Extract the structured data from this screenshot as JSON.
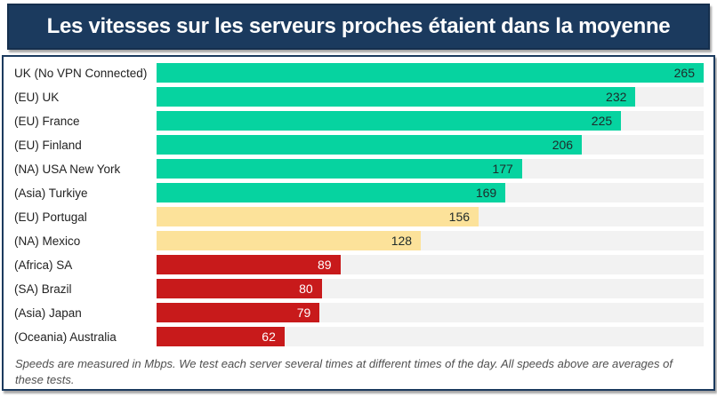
{
  "title": "Les vitesses sur les serveurs proches étaient dans la moyenne",
  "footnote": "Speeds are measured in Mbps. We test each server several times at different times of the day. All speeds above are averages of these tests.",
  "colors": {
    "navy": "#1b3a5e",
    "navy_border": "#152f4e",
    "green": "#06d3a0",
    "yellow": "#fce29a",
    "red": "#c81a1b",
    "track": "#f2f2f2",
    "value_text_dark": "#1e2a2a",
    "value_text_light": "#ffffff"
  },
  "chart_data": {
    "type": "bar",
    "orientation": "horizontal",
    "title": "Les vitesses sur les serveurs proches étaient dans la moyenne",
    "unit": "Mbps",
    "xlim": [
      0,
      265
    ],
    "grid": false,
    "legend": false,
    "categories": [
      "UK (No VPN Connected)",
      "(EU) UK",
      "(EU) France",
      "(EU) Finland",
      "(NA) USA New York",
      "(Asia) Turkiye",
      "(EU) Portugal",
      "(NA) Mexico",
      "(Africa) SA",
      "(SA) Brazil",
      "(Asia) Japan",
      "(Oceania) Australia"
    ],
    "values": [
      265,
      232,
      225,
      206,
      177,
      169,
      156,
      128,
      89,
      80,
      79,
      62
    ],
    "bar_tiers": [
      "green",
      "green",
      "green",
      "green",
      "green",
      "green",
      "yellow",
      "yellow",
      "red",
      "red",
      "red",
      "red"
    ]
  }
}
